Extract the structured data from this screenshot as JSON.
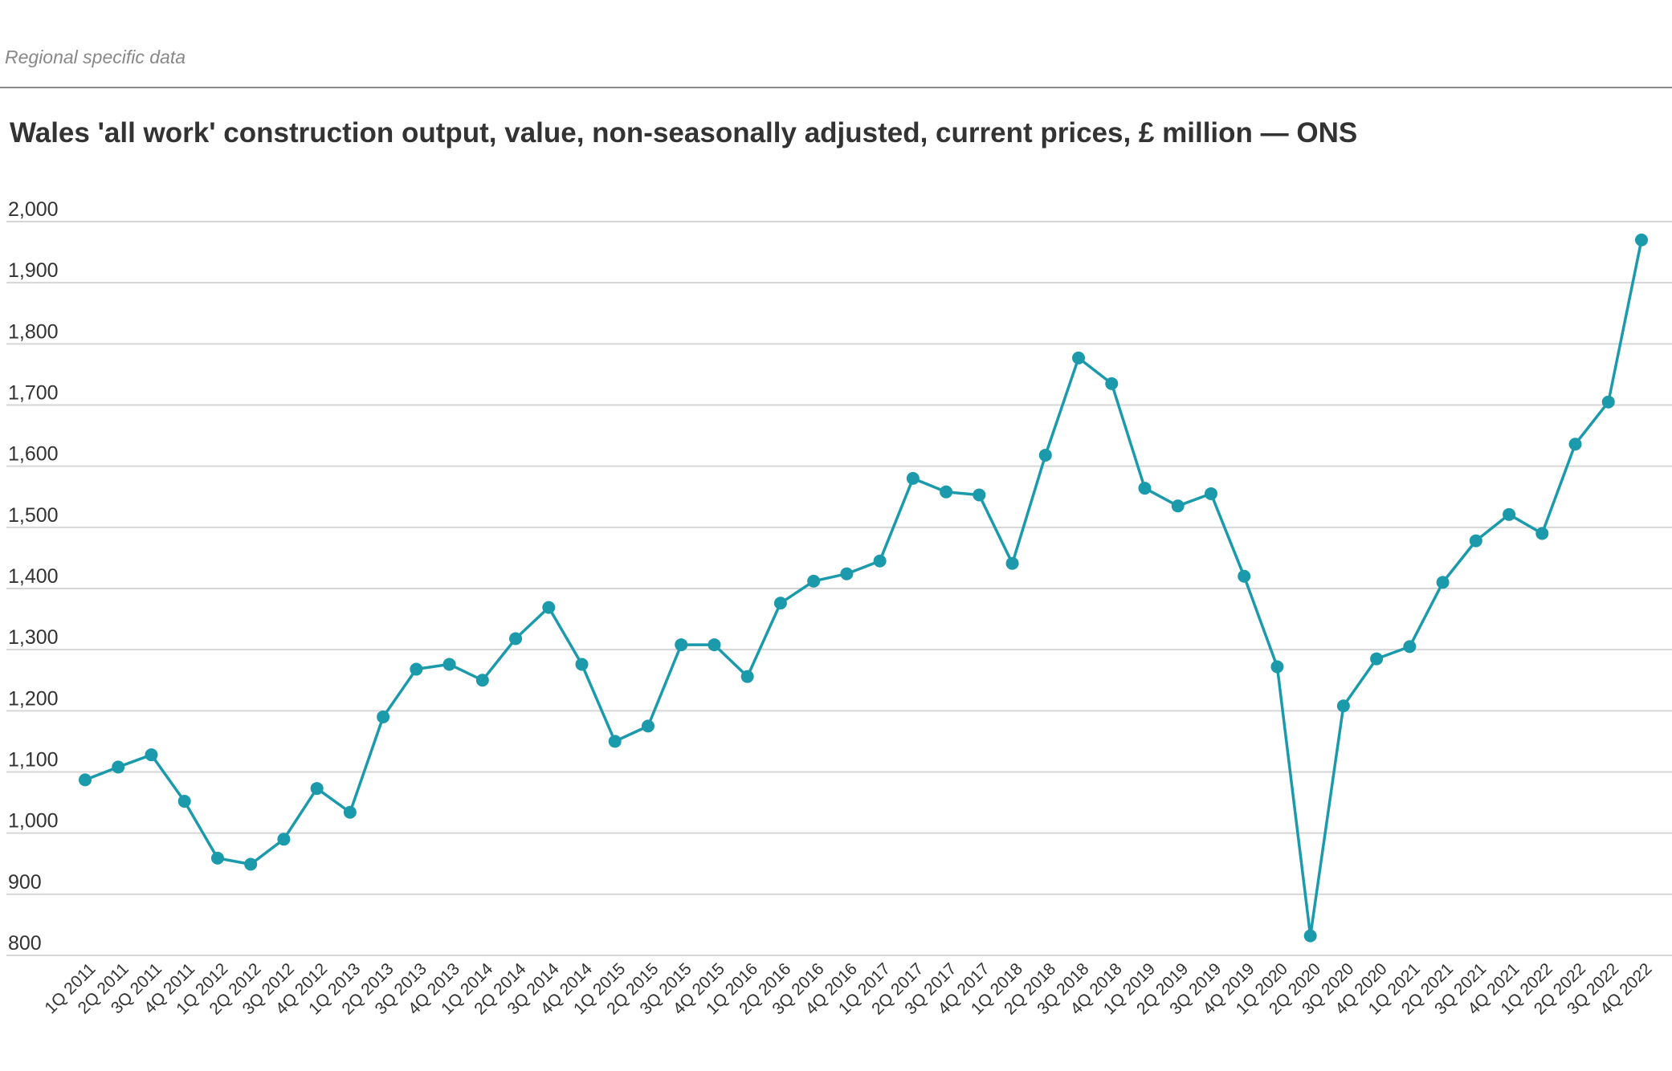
{
  "header": {
    "kicker": "Regional specific data",
    "title": "Wales 'all work' construction output, value, non-seasonally adjusted, current prices, £ million — ONS"
  },
  "colors": {
    "series": "#1a9aab",
    "grid": "#d6d6d6",
    "text": "#333333"
  },
  "chart_data": {
    "type": "line",
    "title": "Wales 'all work' construction output, value, non-seasonally adjusted, current prices, £ million — ONS",
    "xlabel": "",
    "ylabel": "",
    "ylim": [
      800,
      2000
    ],
    "yticks": [
      800,
      900,
      1000,
      1100,
      1200,
      1300,
      1400,
      1500,
      1600,
      1700,
      1800,
      1900,
      2000
    ],
    "ytick_labels": [
      "800",
      "900",
      "1,000",
      "1,100",
      "1,200",
      "1,300",
      "1,400",
      "1,500",
      "1,600",
      "1,700",
      "1,800",
      "1,900",
      "2,000"
    ],
    "grid": true,
    "legend": "none",
    "categories": [
      "1Q 2011",
      "2Q 2011",
      "3Q 2011",
      "4Q 2011",
      "1Q 2012",
      "2Q 2012",
      "3Q 2012",
      "4Q 2012",
      "1Q 2013",
      "2Q 2013",
      "3Q 2013",
      "4Q 2013",
      "1Q 2014",
      "2Q 2014",
      "3Q 2014",
      "4Q 2014",
      "1Q 2015",
      "2Q 2015",
      "3Q 2015",
      "4Q 2015",
      "1Q 2016",
      "2Q 2016",
      "3Q 2016",
      "4Q 2016",
      "1Q 2017",
      "2Q 2017",
      "3Q 2017",
      "4Q 2017",
      "1Q 2018",
      "2Q 2018",
      "3Q 2018",
      "4Q 2018",
      "1Q 2019",
      "2Q 2019",
      "3Q 2019",
      "4Q 2019",
      "1Q 2020",
      "2Q 2020",
      "3Q 2020",
      "4Q 2020",
      "1Q 2021",
      "2Q 2021",
      "3Q 2021",
      "4Q 2021",
      "1Q 2022",
      "2Q 2022",
      "3Q 2022",
      "4Q 2022"
    ],
    "series": [
      {
        "values": [
          1087,
          1108,
          1128,
          1052,
          959,
          949,
          990,
          1073,
          1034,
          1190,
          1268,
          1276,
          1250,
          1318,
          1369,
          1276,
          1150,
          1175,
          1308,
          1308,
          1256,
          1376,
          1412,
          1424,
          1445,
          1580,
          1558,
          1553,
          1441,
          1618,
          1777,
          1735,
          1564,
          1535,
          1555,
          1420,
          1272,
          832,
          1208,
          1285,
          1305,
          1410,
          1478,
          1521,
          1490,
          1636,
          1705,
          1970
        ]
      }
    ]
  }
}
